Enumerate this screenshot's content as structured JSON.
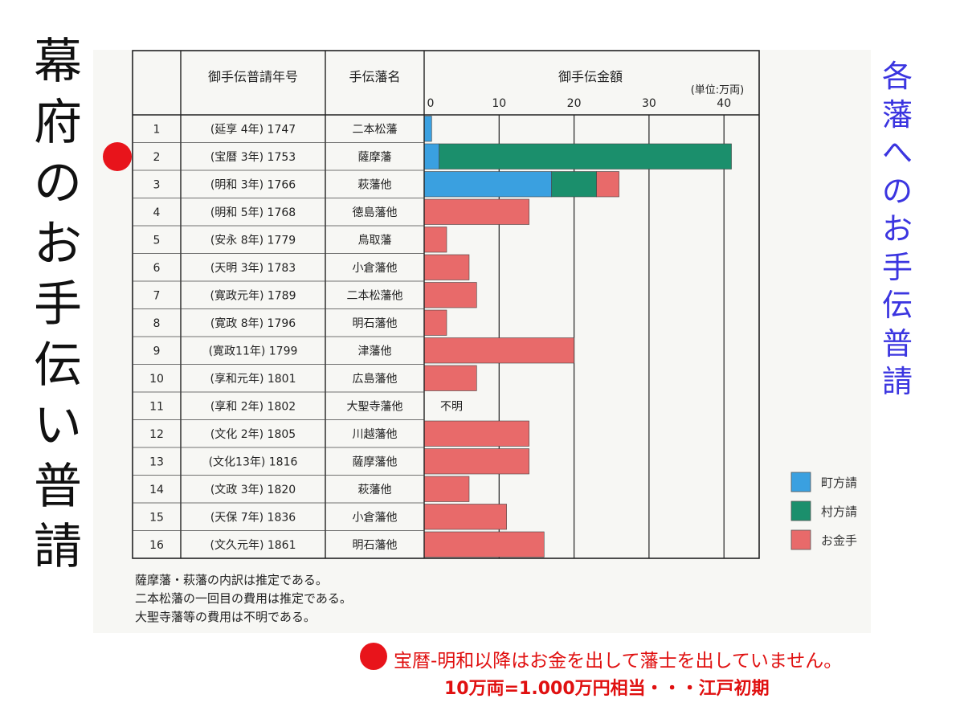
{
  "left_title": [
    "幕",
    "府",
    "の",
    "お",
    "手",
    "伝",
    "い",
    "普",
    "請"
  ],
  "right_title": [
    "各",
    "藩",
    "へ",
    "の",
    "お",
    "手",
    "伝",
    "普",
    "請"
  ],
  "chart_data": {
    "type": "bar",
    "stacked": true,
    "horizontal": true,
    "table_headers": {
      "index": "",
      "year": "御手伝普請年号",
      "domain": "手伝藩名",
      "amount": "御手伝金額"
    },
    "unit": "(単位:万両)",
    "xlim": [
      0,
      45
    ],
    "xticks": [
      0,
      10,
      20,
      30,
      40
    ],
    "rows": [
      {
        "no": "1",
        "year": "(延享 4年) 1747",
        "domain": "二本松藩"
      },
      {
        "no": "2",
        "year": "(宝暦 3年) 1753",
        "domain": "薩摩藩"
      },
      {
        "no": "3",
        "year": "(明和 3年) 1766",
        "domain": "萩藩他"
      },
      {
        "no": "4",
        "year": "(明和 5年) 1768",
        "domain": "徳島藩他"
      },
      {
        "no": "5",
        "year": "(安永 8年) 1779",
        "domain": "鳥取藩"
      },
      {
        "no": "6",
        "year": "(天明 3年) 1783",
        "domain": "小倉藩他"
      },
      {
        "no": "7",
        "year": "(寛政元年) 1789",
        "domain": "二本松藩他"
      },
      {
        "no": "8",
        "year": "(寛政 8年) 1796",
        "domain": "明石藩他"
      },
      {
        "no": "9",
        "year": "(寛政11年) 1799",
        "domain": "津藩他"
      },
      {
        "no": "10",
        "year": "(享和元年) 1801",
        "domain": "広島藩他"
      },
      {
        "no": "11",
        "year": "(享和 2年) 1802",
        "domain": "大聖寺藩他"
      },
      {
        "no": "12",
        "year": "(文化 2年) 1805",
        "domain": "川越藩他"
      },
      {
        "no": "13",
        "year": "(文化13年) 1816",
        "domain": "薩摩藩他"
      },
      {
        "no": "14",
        "year": "(文政 3年) 1820",
        "domain": "萩藩他"
      },
      {
        "no": "15",
        "year": "(天保 7年) 1836",
        "domain": "小倉藩他"
      },
      {
        "no": "16",
        "year": "(文久元年) 1861",
        "domain": "明石藩他"
      }
    ],
    "series": [
      {
        "name": "町方請",
        "color": "#3aa0e0",
        "values": [
          1,
          2,
          17,
          0,
          0,
          0,
          0,
          0,
          0,
          0,
          null,
          0,
          0,
          0,
          0,
          0
        ]
      },
      {
        "name": "村方請",
        "color": "#1b8f6c",
        "values": [
          0,
          39,
          6,
          0,
          0,
          0,
          0,
          0,
          0,
          0,
          null,
          0,
          0,
          0,
          0,
          0
        ]
      },
      {
        "name": "お金手",
        "color": "#e86a6a",
        "values": [
          0,
          0,
          3,
          14,
          3,
          6,
          7,
          3,
          20,
          7,
          null,
          14,
          14,
          6,
          11,
          16
        ]
      }
    ],
    "annotations": [
      {
        "row": 11,
        "text": "不明"
      }
    ],
    "notes": [
      "薩摩藩・萩藩の内訳は推定である。",
      "二本松藩の一回目の費用は推定である。",
      "大聖寺藩等の費用は不明である。"
    ]
  },
  "footer": {
    "line1": "宝暦-明和以降はお金を出して藩士を出していません。",
    "line2": "10万両=1.000万円相当・・・江戸初期"
  }
}
